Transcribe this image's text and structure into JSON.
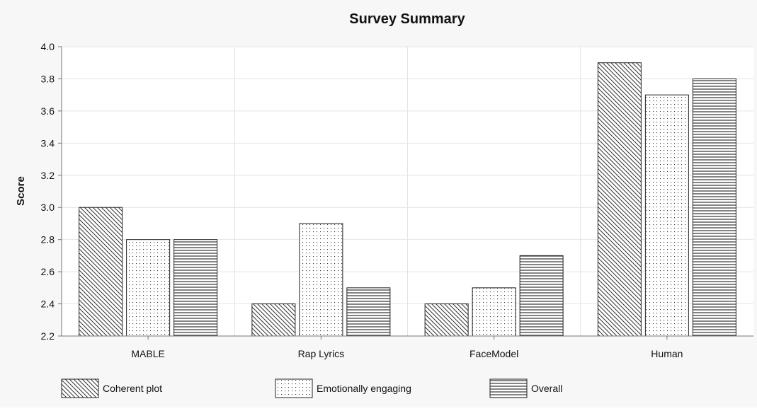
{
  "chart_data": {
    "type": "bar",
    "title": "Survey Summary",
    "xlabel": "",
    "ylabel": "Score",
    "ylim": [
      2.2,
      4.0
    ],
    "yticks": [
      "2.2",
      "2.4",
      "2.6",
      "2.8",
      "3.0",
      "3.2",
      "3.4",
      "3.6",
      "3.8",
      "4.0"
    ],
    "categories": [
      "MABLE",
      "Rap Lyrics",
      "FaceModel",
      "Human"
    ],
    "series": [
      {
        "name": "Coherent plot",
        "pattern": "diagonal",
        "values": [
          3.0,
          2.4,
          2.4,
          3.9
        ]
      },
      {
        "name": "Emotionally engaging",
        "pattern": "dots",
        "values": [
          2.8,
          2.9,
          2.5,
          3.7
        ]
      },
      {
        "name": "Overall",
        "pattern": "horizontal",
        "values": [
          2.8,
          2.5,
          2.7,
          3.8
        ]
      }
    ],
    "grid": true,
    "legend_position": "bottom-left",
    "colors": {
      "background": "#f7f7f7",
      "plot_background": "#ffffff",
      "bar_stroke": "#222222",
      "grid": "#e4e4e4",
      "axis": "#777777"
    }
  }
}
